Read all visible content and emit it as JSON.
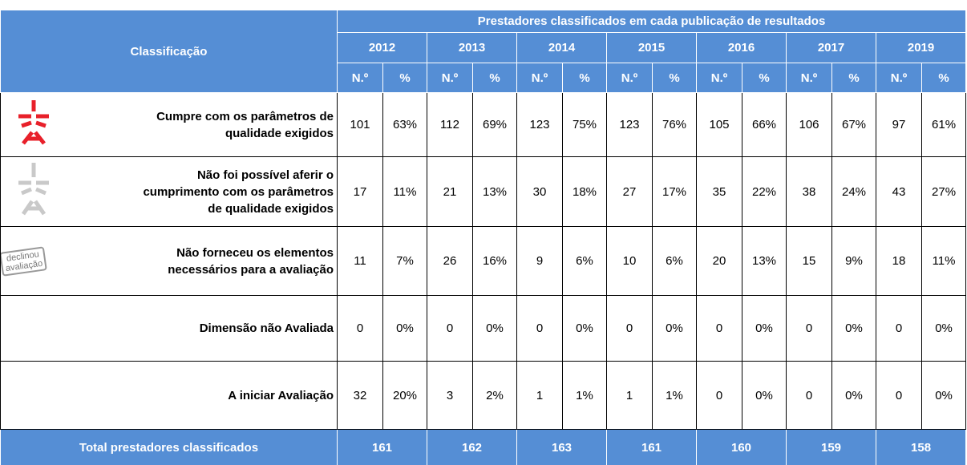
{
  "header": {
    "title": "Classificação",
    "group": "Prestadores classificados em cada publicação de resultados",
    "years": [
      "2012",
      "2013",
      "2014",
      "2015",
      "2016",
      "2017",
      "2019"
    ],
    "sub": [
      "N.º",
      "%"
    ]
  },
  "rows": [
    {
      "label": [
        "Cumpre com os parâmetros de",
        "qualidade exigidos"
      ],
      "values": [
        "101",
        "63%",
        "112",
        "69%",
        "123",
        "75%",
        "123",
        "76%",
        "105",
        "66%",
        "106",
        "67%",
        "97",
        "61%"
      ]
    },
    {
      "label": [
        "Não foi possível aferir o",
        "cumprimento com os parâmetros",
        "de qualidade exigidos"
      ],
      "values": [
        "17",
        "11%",
        "21",
        "13%",
        "30",
        "18%",
        "27",
        "17%",
        "35",
        "22%",
        "38",
        "24%",
        "43",
        "27%"
      ]
    },
    {
      "label": [
        "Não forneceu os elementos",
        "necessários para a avaliação"
      ],
      "icon_text": [
        "declinou",
        "avaliação"
      ],
      "values": [
        "11",
        "7%",
        "26",
        "16%",
        "9",
        "6%",
        "10",
        "6%",
        "20",
        "13%",
        "15",
        "9%",
        "18",
        "11%"
      ]
    },
    {
      "label": [
        "Dimensão não Avaliada"
      ],
      "values": [
        "0",
        "0%",
        "0",
        "0%",
        "0",
        "0%",
        "0",
        "0%",
        "0",
        "0%",
        "0",
        "0%",
        "0",
        "0%"
      ]
    },
    {
      "label": [
        "A iniciar Avaliação"
      ],
      "values": [
        "32",
        "20%",
        "3",
        "2%",
        "1",
        "1%",
        "1",
        "1%",
        "0",
        "0%",
        "0",
        "0%",
        "0",
        "0%"
      ]
    }
  ],
  "total": {
    "label": "Total prestadores classificados",
    "values": [
      "161",
      "162",
      "163",
      "161",
      "160",
      "159",
      "158"
    ]
  }
}
